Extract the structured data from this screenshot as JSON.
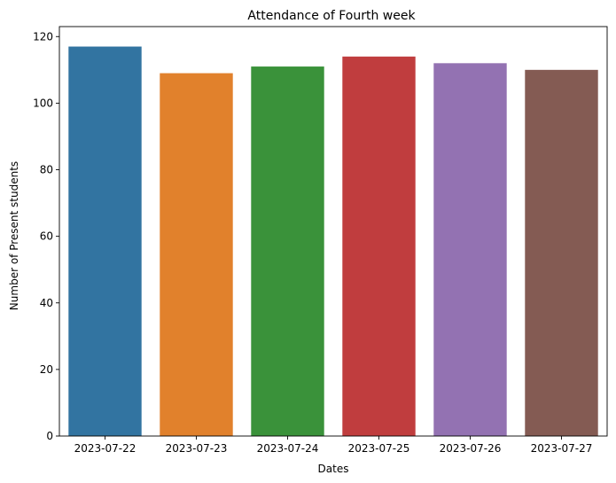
{
  "chart_data": {
    "type": "bar",
    "title": "Attendance of Fourth week",
    "xlabel": "Dates",
    "ylabel": "Number of Present students",
    "categories": [
      "2023-07-22",
      "2023-07-23",
      "2023-07-24",
      "2023-07-25",
      "2023-07-26",
      "2023-07-27"
    ],
    "values": [
      117,
      109,
      111,
      114,
      112,
      110
    ],
    "colors": [
      "#3274a1",
      "#e1812c",
      "#3a923a",
      "#c03d3e",
      "#9372b2",
      "#845b53"
    ],
    "ylim": [
      0,
      123
    ],
    "yticks": [
      0,
      20,
      40,
      60,
      80,
      100,
      120
    ],
    "grid": false,
    "legend": "none"
  }
}
